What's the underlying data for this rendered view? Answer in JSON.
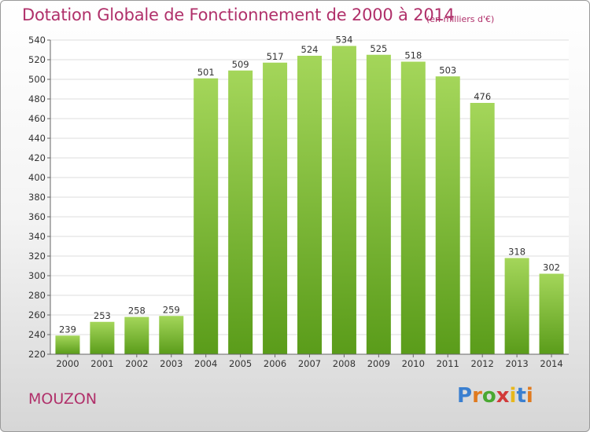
{
  "header": {
    "title": "Dotation Globale de Fonctionnement de 2000 à 2014",
    "subtitle": "(en milliers d'€)"
  },
  "footer": {
    "city": "MOUZON",
    "logo_text": "Proxiti",
    "logo_colors": [
      "#3a7fd0",
      "#e07a1f",
      "#4aa832",
      "#d13a3a",
      "#e8b81c",
      "#3a7fd0",
      "#e07a1f"
    ]
  },
  "colors": {
    "bar_top": "#a4d65a",
    "bar_bottom": "#5a9c1a",
    "accent": "#b0306a"
  },
  "chart_data": {
    "type": "bar",
    "categories": [
      "2000",
      "2001",
      "2002",
      "2003",
      "2004",
      "2005",
      "2006",
      "2007",
      "2008",
      "2009",
      "2010",
      "2011",
      "2012",
      "2013",
      "2014"
    ],
    "values": [
      239,
      253,
      258,
      259,
      501,
      509,
      517,
      524,
      534,
      525,
      518,
      503,
      476,
      318,
      302
    ],
    "ylim": [
      220,
      540
    ],
    "yticks": [
      220,
      240,
      260,
      280,
      300,
      320,
      340,
      360,
      380,
      400,
      420,
      440,
      460,
      480,
      500,
      520,
      540
    ],
    "grid": true,
    "legend": "none"
  }
}
